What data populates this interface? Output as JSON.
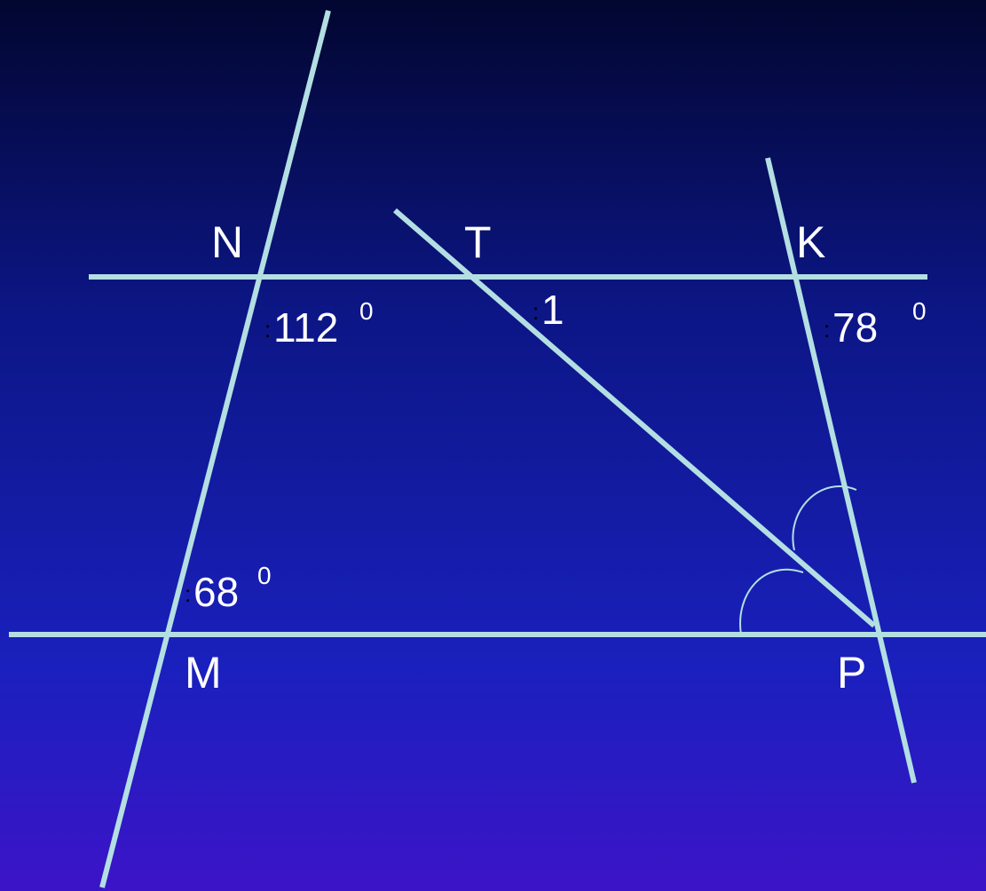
{
  "points": [
    {
      "label": "N"
    },
    {
      "label": "T"
    },
    {
      "label": "K"
    },
    {
      "label": "M"
    },
    {
      "label": "P"
    }
  ],
  "angles": [
    {
      "mark": ":",
      "value": "112",
      "degree": "0"
    },
    {
      "mark": ":",
      "value": "1"
    },
    {
      "mark": ":",
      "value": "78",
      "degree": "0"
    },
    {
      "mark": ":",
      "value": "68",
      "degree": "0"
    }
  ]
}
